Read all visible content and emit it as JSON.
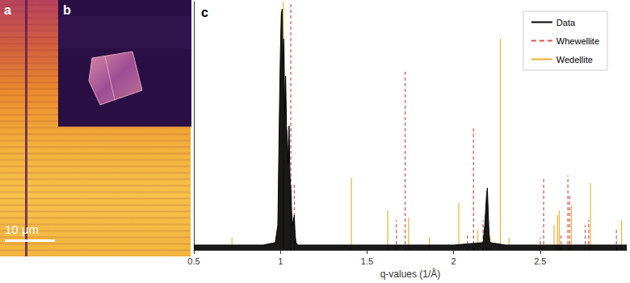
{
  "panels": [
    {
      "label": "a",
      "scale_bar": "10 μm"
    },
    {
      "label": "b"
    }
  ],
  "chart_data": {
    "type": "line",
    "title": "c",
    "x_label": "q-values (1/Å)",
    "xlim": [
      0.5,
      3.0
    ],
    "xticks": [
      0.5,
      1,
      1.5,
      2,
      2.5
    ],
    "ylim": [
      0,
      1
    ],
    "tick_labels": "x",
    "grid": false,
    "legend": "upper right",
    "series": [
      {
        "name": "Data",
        "type": "line",
        "color": "#000000",
        "line_style": "solid",
        "x": [
          0.5,
          0.9,
          0.97,
          0.985,
          0.99,
          0.995,
          1.0,
          1.005,
          1.01,
          1.015,
          1.02,
          1.025,
          1.03,
          1.035,
          1.04,
          1.045,
          1.05,
          1.055,
          1.06,
          1.065,
          1.07,
          1.075,
          1.08,
          1.085,
          1.09,
          1.1,
          1.4,
          2.0,
          2.17,
          2.18,
          2.19,
          2.195,
          2.2,
          2.205,
          2.21,
          2.3,
          3.0
        ],
        "values": [
          0.02,
          0.02,
          0.03,
          0.1,
          0.35,
          0.6,
          0.8,
          0.95,
          0.97,
          0.75,
          0.85,
          0.55,
          0.7,
          0.5,
          0.45,
          0.35,
          0.5,
          0.3,
          0.25,
          0.15,
          0.1,
          0.12,
          0.14,
          0.06,
          0.03,
          0.02,
          0.02,
          0.02,
          0.03,
          0.1,
          0.22,
          0.25,
          0.15,
          0.06,
          0.03,
          0.02,
          0.02
        ]
      },
      {
        "name": "Whewellite",
        "type": "stem",
        "color": "#d9534a",
        "line_style": "dashed",
        "x": [
          1.06,
          1.08,
          1.67,
          1.72,
          2.08,
          2.115,
          2.17,
          2.19,
          2.5,
          2.52,
          2.62,
          2.66,
          2.67,
          2.76,
          2.78,
          2.94
        ],
        "values": [
          1.0,
          0.27,
          0.12,
          0.72,
          0.07,
          0.49,
          0.12,
          0.1,
          0.05,
          0.29,
          0.06,
          0.3,
          0.22,
          0.1,
          0.12,
          0.09
        ]
      },
      {
        "name": "Wedellite",
        "type": "stem",
        "color": "#f0b030",
        "line_style": "solid",
        "x": [
          0.72,
          1.017,
          1.41,
          1.62,
          1.74,
          1.86,
          2.03,
          2.14,
          2.21,
          2.27,
          2.32,
          2.58,
          2.6,
          2.61,
          2.68,
          2.79,
          2.97
        ],
        "values": [
          0.05,
          1.0,
          0.29,
          0.16,
          0.13,
          0.05,
          0.19,
          0.08,
          0.06,
          0.85,
          0.05,
          0.1,
          0.14,
          0.16,
          0.18,
          0.27,
          0.12
        ]
      }
    ]
  }
}
